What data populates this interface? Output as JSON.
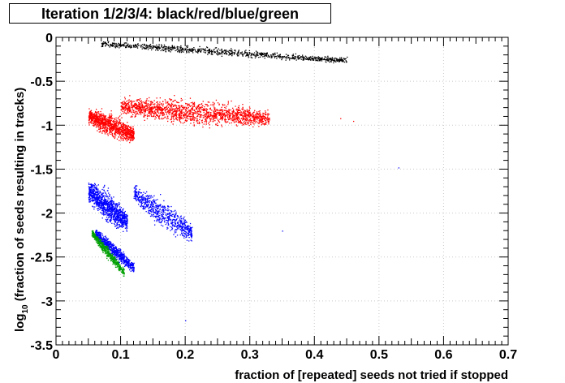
{
  "chart_data": {
    "type": "scatter",
    "title": "Iteration 1/2/3/4: black/red/blue/green",
    "xlabel": "fraction of [repeated] seeds not tried if stopped",
    "ylabel_prefix": "log",
    "ylabel_subscript": "10",
    "ylabel_rest": " (fraction of seeds resulting in tracks)",
    "xlim": [
      0,
      0.7
    ],
    "ylim": [
      -3.5,
      0
    ],
    "xticks": [
      "0",
      "0.1",
      "0.2",
      "0.3",
      "0.4",
      "0.5",
      "0.6",
      "0.7"
    ],
    "xtick_values": [
      0,
      0.1,
      0.2,
      0.3,
      0.4,
      0.5,
      0.6,
      0.7
    ],
    "yticks": [
      "0",
      "-0.5",
      "-1",
      "-1.5",
      "-2",
      "-2.5",
      "-3",
      "-3.5"
    ],
    "ytick_values": [
      0,
      -0.5,
      -1,
      -1.5,
      -2,
      -2.5,
      -3,
      -3.5
    ],
    "grid": true,
    "series": [
      {
        "color": "#000000",
        "clusters": [
          {
            "x": [
              0.07,
              0.45
            ],
            "y": [
              -0.07,
              -0.26
            ],
            "slope": -0.5,
            "spread": 0.04,
            "n": 900
          }
        ],
        "outliers": [
          [
            0.42,
            -0.21
          ],
          [
            0.45,
            -0.22
          ],
          [
            0.07,
            -0.1
          ]
        ]
      },
      {
        "color": "#ff0000",
        "clusters": [
          {
            "x": [
              0.05,
              0.12
            ],
            "y": [
              -0.65,
              -1.35
            ],
            "slope": -3.0,
            "spread": 0.12,
            "n": 1100
          },
          {
            "x": [
              0.1,
              0.33
            ],
            "y": [
              -0.6,
              -1.1
            ],
            "slope": -0.6,
            "spread": 0.13,
            "n": 1700
          }
        ],
        "outliers": [
          [
            0.46,
            -0.95
          ],
          [
            0.44,
            -0.92
          ]
        ]
      },
      {
        "color": "#0000ff",
        "clusters": [
          {
            "x": [
              0.05,
              0.11
            ],
            "y": [
              -1.45,
              -2.4
            ],
            "slope": -6.0,
            "spread": 0.16,
            "n": 1100
          },
          {
            "x": [
              0.06,
              0.12
            ],
            "y": [
              -2.0,
              -2.85
            ],
            "slope": -6.5,
            "spread": 0.08,
            "n": 700
          },
          {
            "x": [
              0.12,
              0.21
            ],
            "y": [
              -1.55,
              -2.45
            ],
            "slope": -5.0,
            "spread": 0.15,
            "n": 700
          }
        ],
        "outliers": [
          [
            0.35,
            -2.2
          ],
          [
            0.2,
            -3.22
          ],
          [
            0.53,
            -1.48
          ]
        ]
      },
      {
        "color": "#00a000",
        "clusters": [
          {
            "x": [
              0.055,
              0.105
            ],
            "y": [
              -2.1,
              -2.8
            ],
            "slope": -9.0,
            "spread": 0.06,
            "n": 500
          }
        ],
        "outliers": []
      }
    ]
  }
}
